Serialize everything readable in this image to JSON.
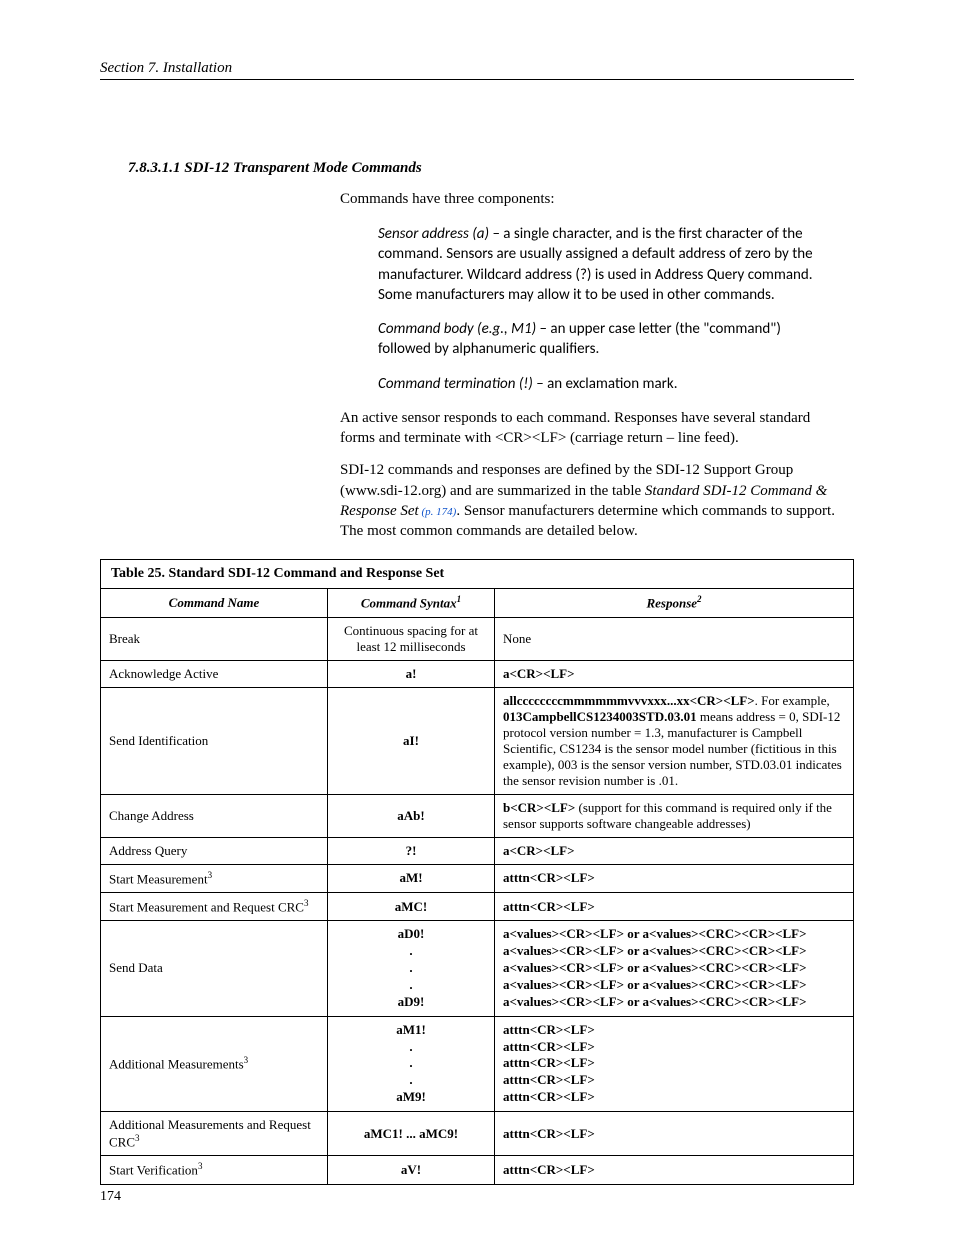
{
  "header": {
    "section": "Section 7.  Installation"
  },
  "heading": {
    "number": "7.8.3.1.1",
    "title": "SDI-12 Transparent Mode Commands"
  },
  "intro": "Commands have three components:",
  "defs": {
    "d1_term": "Sensor address (a)",
    "d1_body": " – a single character, and is the first character of the command.  Sensors are usually assigned a default address of zero by the manufacturer.  Wildcard address (?) is used in Address Query command.  Some manufacturers may allow it to be used in other commands.",
    "d2_term": "Command body (e.g., M1)",
    "d2_body": " – an upper case letter (the \"command\") followed by alphanumeric qualifiers.",
    "d3_term": "Command termination (!)",
    "d3_body": " – an exclamation mark."
  },
  "body": {
    "p1": "An active sensor responds to each command.  Responses have several standard forms and terminate with <CR><LF> (carriage return – line feed).",
    "p2a": "SDI-12 commands and responses are defined by the SDI-12 Support Group (www.sdi-12.org) and are summarized in the table ",
    "p2title": "Standard SDI-12 Command & Response Set",
    "p2ref": " (p. 174)",
    "p2b": ".  Sensor manufacturers determine which commands to support.  The most common commands are detailed below."
  },
  "table": {
    "caption": "Table 25. Standard SDI-12 Command and Response Set",
    "head": {
      "c1": "Command Name",
      "c2": "Command Syntax",
      "c3": "Response",
      "s1": "1",
      "s2": "2"
    },
    "rows": {
      "r0": {
        "name": "Break",
        "syntax": "Continuous spacing for at least 12 milliseconds",
        "resp": "None"
      },
      "r1": {
        "name": "Acknowledge Active",
        "syntax": "a!",
        "resp": "a<CR><LF>"
      },
      "r2": {
        "name": "Send Identification",
        "syntax": "aI!",
        "resp_bold": "allccccccccmmmmmmvvvxxx...xx<CR><LF>",
        "resp_rest1": ".  For example, ",
        "resp_bold2": "013CampbellCS1234003STD.03.01",
        "resp_rest2": " means address = 0, SDI-12 protocol version number = 1.3, manufacturer is Campbell Scientific, CS1234 is the sensor model number (fictitious in this example), 003 is the sensor version number, STD.03.01 indicates the sensor revision number is .01."
      },
      "r3": {
        "name": "Change Address",
        "syntax": "aAb!",
        "resp_bold": "b<CR><LF>",
        "resp_rest": " (support for this command is required only if the sensor supports software changeable addresses)"
      },
      "r4": {
        "name": "Address Query",
        "syntax": "?!",
        "resp": "a<CR><LF>"
      },
      "r5": {
        "name": "Start Measurement",
        "sup": "3",
        "syntax": "aM!",
        "resp": "atttn<CR><LF>"
      },
      "r6": {
        "name": "Start Measurement and Request CRC",
        "sup": "3",
        "syntax": "aMC!",
        "resp": "atttn<CR><LF>"
      },
      "r7": {
        "name": "Send Data",
        "syntax_l1": "aD0!",
        "syntax_l2": ".",
        "syntax_l3": ".",
        "syntax_l4": ".",
        "syntax_l5": "aD9!",
        "resp_line": "a<values><CR><LF> or a<values><CRC><CR><LF>"
      },
      "r8": {
        "name": "Additional Measurements",
        "sup": "3",
        "syntax_l1": "aM1!",
        "syntax_l2": ".",
        "syntax_l3": ".",
        "syntax_l4": ".",
        "syntax_l5": "aM9!",
        "resp_line": "atttn<CR><LF>"
      },
      "r9": {
        "name": "Additional Measurements and Request CRC",
        "sup": "3",
        "syntax": "aMC1! ... aMC9!",
        "resp": "atttn<CR><LF>"
      },
      "r10": {
        "name": "Start Verification",
        "sup": "3",
        "syntax": "aV!",
        "resp": "atttn<CR><LF>"
      }
    }
  },
  "page_number": "174"
}
